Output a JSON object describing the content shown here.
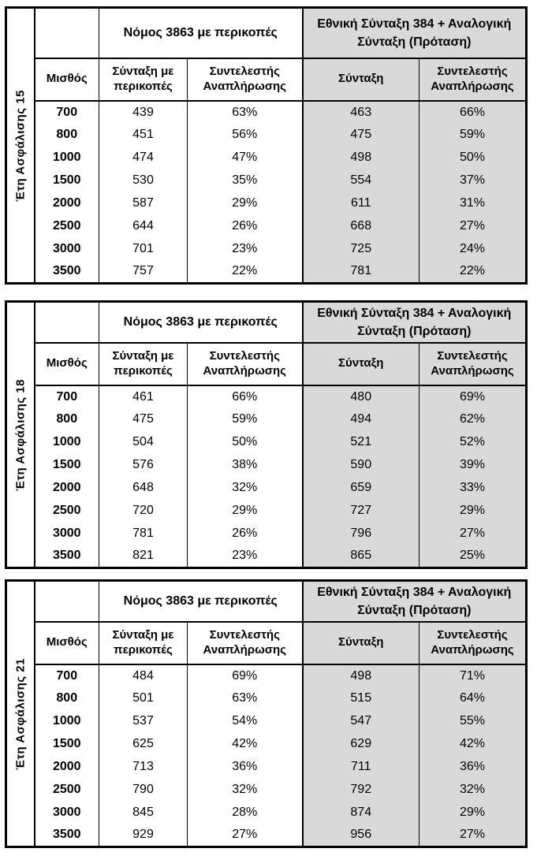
{
  "colors": {
    "shaded_bg": "#d9d9d9",
    "border": "#000000",
    "text": "#000000",
    "page_bg": "#ffffff"
  },
  "headers": {
    "group_law": "Νόμος 3863 με περικοπές",
    "group_proposal": "Εθνική Σύνταξη 384 + Αναλογική Σύνταξη (Πρόταση)",
    "col_salary": "Μισθός",
    "col_pension_cut": "Σύνταξη με περικοπές",
    "col_replacement_rate": "Συντελεστής Αναπλήρωσης",
    "col_pension_proposal": "Σύνταξη",
    "col_replacement_rate_proposal": "Συντελεστής Αναπλήρωσης"
  },
  "tables": [
    {
      "side_label": "Έτη Ασφάλισης 15",
      "rows": [
        [
          "700",
          "439",
          "63%",
          "463",
          "66%"
        ],
        [
          "800",
          "451",
          "56%",
          "475",
          "59%"
        ],
        [
          "1000",
          "474",
          "47%",
          "498",
          "50%"
        ],
        [
          "1500",
          "530",
          "35%",
          "554",
          "37%"
        ],
        [
          "2000",
          "587",
          "29%",
          "611",
          "31%"
        ],
        [
          "2500",
          "644",
          "26%",
          "668",
          "27%"
        ],
        [
          "3000",
          "701",
          "23%",
          "725",
          "24%"
        ],
        [
          "3500",
          "757",
          "22%",
          "781",
          "22%"
        ]
      ]
    },
    {
      "side_label": "Έτη Ασφάλισης 18",
      "rows": [
        [
          "700",
          "461",
          "66%",
          "480",
          "69%"
        ],
        [
          "800",
          "475",
          "59%",
          "494",
          "62%"
        ],
        [
          "1000",
          "504",
          "50%",
          "521",
          "52%"
        ],
        [
          "1500",
          "576",
          "38%",
          "590",
          "39%"
        ],
        [
          "2000",
          "648",
          "32%",
          "659",
          "33%"
        ],
        [
          "2500",
          "720",
          "29%",
          "727",
          "29%"
        ],
        [
          "3000",
          "781",
          "26%",
          "796",
          "27%"
        ],
        [
          "3500",
          "821",
          "23%",
          "865",
          "25%"
        ]
      ]
    },
    {
      "side_label": "Έτη Ασφάλισης 21",
      "rows": [
        [
          "700",
          "484",
          "69%",
          "498",
          "71%"
        ],
        [
          "800",
          "501",
          "63%",
          "515",
          "64%"
        ],
        [
          "1000",
          "537",
          "54%",
          "547",
          "55%"
        ],
        [
          "1500",
          "625",
          "42%",
          "629",
          "42%"
        ],
        [
          "2000",
          "713",
          "36%",
          "711",
          "36%"
        ],
        [
          "2500",
          "790",
          "32%",
          "792",
          "32%"
        ],
        [
          "3000",
          "845",
          "28%",
          "874",
          "29%"
        ],
        [
          "3500",
          "929",
          "27%",
          "956",
          "27%"
        ]
      ]
    }
  ]
}
